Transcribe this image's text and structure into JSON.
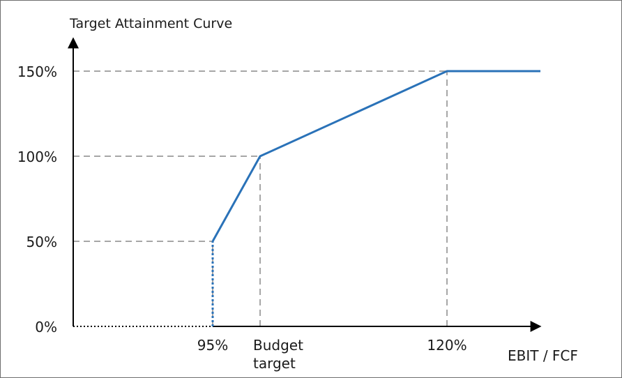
{
  "chart_data": {
    "type": "line",
    "title": "Target Attainment Curve",
    "xlabel": "EBIT / FCF",
    "ylabel": "",
    "y_ticks": [
      "0%",
      "50%",
      "100%",
      "150%"
    ],
    "y_tick_values": [
      0,
      50,
      100,
      150
    ],
    "x_ticks": [
      {
        "label": "95%",
        "lines": [
          "95%"
        ],
        "value": 95
      },
      {
        "label": "Budget target",
        "lines": [
          "Budget",
          "target"
        ],
        "value": 100
      },
      {
        "label": "120%",
        "lines": [
          "120%"
        ],
        "value": 120
      }
    ],
    "series": [
      {
        "values_x": [
          95,
          100,
          120,
          125
        ],
        "values_y": [
          50,
          100,
          150,
          150
        ]
      }
    ],
    "vertical_drop": {
      "x": 95,
      "from": 0,
      "to": 50
    },
    "xlim": [
      80,
      130
    ],
    "ylim": [
      0,
      150
    ],
    "line_color": "#2a72b8",
    "guide_color": "#a6a6a6",
    "grid": false,
    "legend": "none"
  }
}
